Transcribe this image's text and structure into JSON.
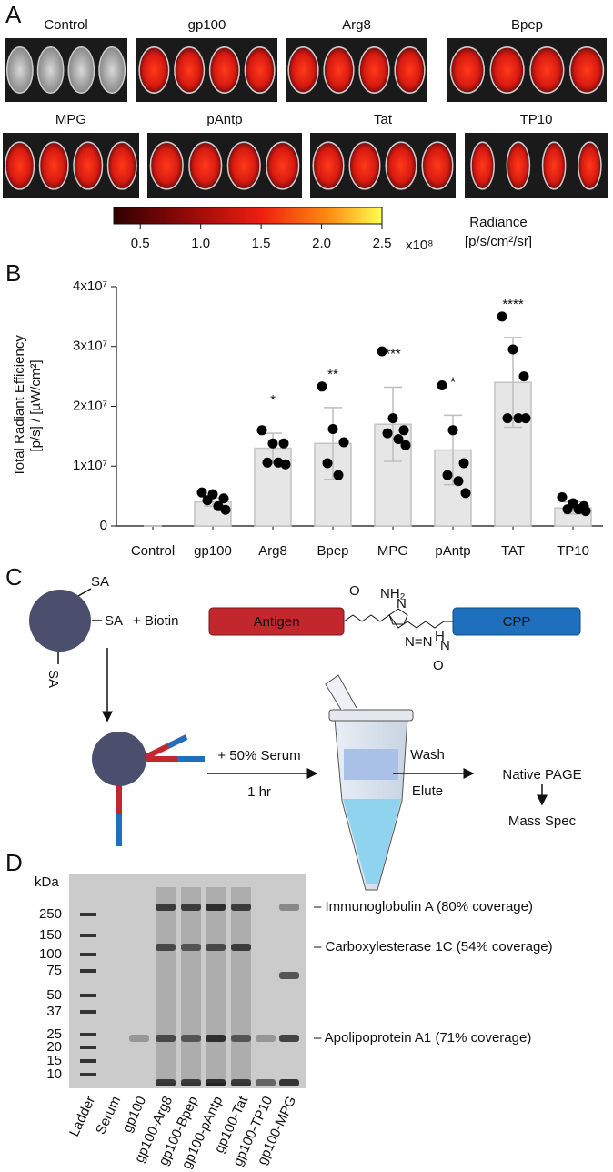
{
  "panel_a": {
    "label": "A",
    "images": [
      "Control",
      "gp100",
      "Arg8",
      "Bpep",
      "MPG",
      "pAntp",
      "Tat",
      "TP10"
    ],
    "colorbar": {
      "lim": [
        0.28,
        2.5
      ],
      "ticks": [
        0.5,
        {
          "value": 1,
          "label": "1.0"
        },
        1.5,
        {
          "value": 2,
          "label": "2.0"
        },
        2.5
      ],
      "exponent": "x10⁸",
      "title": "Radiance",
      "unit": "[p/s/cm²/sr]"
    }
  },
  "chart_data": {
    "type": "bar",
    "panel_label": "B",
    "ylabel": [
      "Total Radiant Efficiency",
      "[p/s] / [µW/cm²]"
    ],
    "categories": [
      "Control",
      "gp100",
      "Arg8",
      "Bpep",
      "MPG",
      "pAntp",
      "TAT",
      "TP10"
    ],
    "values": [
      0,
      4000000,
      13000000,
      13800000,
      17000000,
      12700000,
      24000000,
      3000000
    ],
    "errors": [
      0,
      700000,
      2500000,
      6000000,
      6200000,
      5800000,
      7500000,
      1000000
    ],
    "points": [
      [],
      [
        5600000,
        5300000,
        4600000,
        4300000,
        3300000,
        2700000
      ],
      [
        16000000,
        13800000,
        13800000,
        10600000,
        10600000,
        10300000
      ],
      [
        23300000,
        16200000,
        14000000,
        10500000,
        8500000
      ],
      [
        29200000,
        18000000,
        16000000,
        15500000,
        14500000,
        13500000
      ],
      [
        23500000,
        16000000,
        10500000,
        8500000,
        7500000,
        5500000
      ],
      [
        35000000,
        29500000,
        25000000,
        18000000,
        18000000,
        18000000
      ],
      [
        4800000,
        3800000,
        3300000,
        2800000,
        2800000,
        2500000
      ]
    ],
    "significance": [
      null,
      null,
      "*",
      "**",
      "***",
      "*",
      "****",
      null
    ],
    "color": "#e6e6e6",
    "edge_color": "#c4c4c4",
    "point_color": "#000000",
    "ylim": [
      0,
      40000000
    ],
    "yticks": [
      0,
      {
        "value": 10000000,
        "label": "1x10⁷"
      },
      {
        "value": 20000000,
        "label": "2x10⁷"
      },
      {
        "value": 30000000,
        "label": "3x10⁷"
      },
      {
        "value": 40000000,
        "label": "4x10⁷"
      }
    ]
  },
  "panel_c": {
    "label": "C",
    "sa": [
      "SA",
      "SA",
      "SA"
    ],
    "biotin": "+ Biotin",
    "antigen": "Antigen",
    "cpp": "CPP",
    "chem": [
      "NH₂",
      "O",
      "N",
      "N=N",
      "H",
      "N",
      "O"
    ],
    "serum": "+ 50% Serum",
    "time": "1 hr",
    "wash": "Wash",
    "elute": "Elute",
    "native_page": "Native PAGE",
    "mass_spec": "Mass Spec"
  },
  "panel_d": {
    "label": "D",
    "unit": "kDa",
    "markers": [
      "250",
      "150",
      "100",
      "75",
      "50",
      "37",
      "25",
      "20",
      "15",
      "10"
    ],
    "lanes": [
      "Ladder",
      "Serum",
      "gp100",
      "gp100-Arg8",
      "gp100-Bpep",
      "gp100-pAntp",
      "gp100-Tat",
      "gp100-TP10",
      "gp100-MPG"
    ],
    "bands": [
      "– Immunoglobulin A (80% coverage)",
      "– Carboxylesterase 1C (54% coverage)",
      "– Apolipoprotein A1 (71% coverage)"
    ]
  }
}
